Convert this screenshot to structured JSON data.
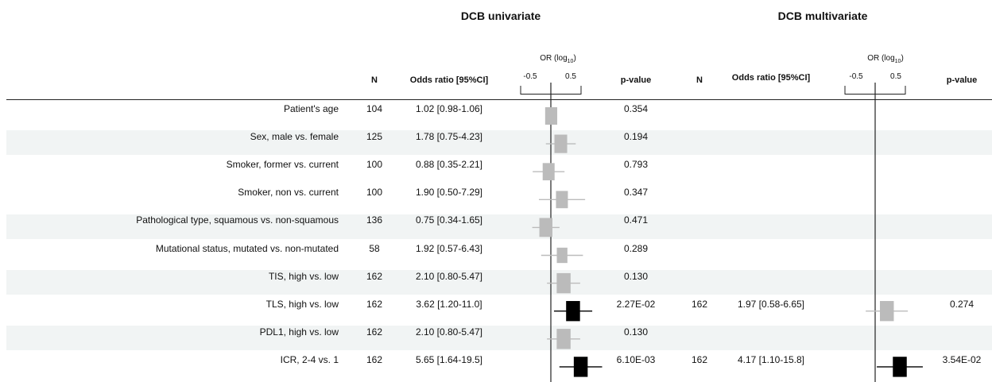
{
  "headings": {
    "univariate": "DCB univariate",
    "multivariate": "DCB multivariate"
  },
  "columns": {
    "n": "N",
    "or_ci": "Odds ratio [95%CI]",
    "or_axis_label": "OR (log",
    "or_axis_sub": "10",
    "or_axis_close": ")",
    "p": "p-value"
  },
  "axis_ticks": [
    "-0.5",
    "0.5"
  ],
  "colors": {
    "significant": "#000000",
    "nonsignificant": "#bbbbbb",
    "band": "#f1f4f4"
  },
  "rows": [
    {
      "label": "Patient's age",
      "uni": {
        "n": "104",
        "or": "1.02 [0.98-1.06]",
        "p": "0.354"
      }
    },
    {
      "label": "Sex, male vs. female",
      "uni": {
        "n": "125",
        "or": "1.78 [0.75-4.23]",
        "p": "0.194"
      }
    },
    {
      "label": "Smoker, former vs. current",
      "uni": {
        "n": "100",
        "or": "0.88 [0.35-2.21]",
        "p": "0.793"
      }
    },
    {
      "label": "Smoker, non vs. current",
      "uni": {
        "n": "100",
        "or": "1.90 [0.50-7.29]",
        "p": "0.347"
      }
    },
    {
      "label": "Pathological type, squamous vs. non-squamous",
      "uni": {
        "n": "136",
        "or": "0.75 [0.34-1.65]",
        "p": "0.471"
      }
    },
    {
      "label": "Mutational status, mutated vs. non-mutated",
      "uni": {
        "n": "58",
        "or": "1.92 [0.57-6.43]",
        "p": "0.289"
      }
    },
    {
      "label": "TIS, high vs. low",
      "uni": {
        "n": "162",
        "or": "2.10 [0.80-5.47]",
        "p": "0.130"
      }
    },
    {
      "label": "TLS, high vs. low",
      "uni": {
        "n": "162",
        "or": "3.62 [1.20-11.0]",
        "p": "2.27E-02"
      },
      "multi": {
        "n": "162",
        "or": "1.97 [0.58-6.65]",
        "p": "0.274"
      }
    },
    {
      "label": "PDL1, high vs. low",
      "uni": {
        "n": "162",
        "or": "2.10 [0.80-5.47]",
        "p": "0.130"
      }
    },
    {
      "label": "ICR, 2-4 vs. 1",
      "uni": {
        "n": "162",
        "or": "5.65 [1.64-19.5]",
        "p": "6.10E-03"
      },
      "multi": {
        "n": "162",
        "or": "4.17 [1.10-15.8]",
        "p": "3.54E-02"
      }
    }
  ],
  "chart_data": [
    {
      "type": "scatter",
      "title": "DCB univariate",
      "xlabel": "OR (log10)",
      "x_scale": "log10",
      "x_ticks": [
        -0.5,
        0.5
      ],
      "xlim": [
        -0.5,
        0.5
      ],
      "categories": [
        "Patient's age",
        "Sex, male vs. female",
        "Smoker, former vs. current",
        "Smoker, non vs. current",
        "Pathological type, squamous vs. non-squamous",
        "Mutational status, mutated vs. non-mutated",
        "TIS, high vs. low",
        "TLS, high vs. low",
        "PDL1, high vs. low",
        "ICR, 2-4 vs. 1"
      ],
      "or": [
        1.02,
        1.78,
        0.88,
        1.9,
        0.75,
        1.92,
        2.1,
        3.62,
        2.1,
        5.65
      ],
      "lower": [
        0.98,
        0.75,
        0.35,
        0.5,
        0.34,
        0.57,
        0.8,
        1.2,
        0.8,
        1.64
      ],
      "upper": [
        1.06,
        4.23,
        2.21,
        7.29,
        1.65,
        6.43,
        5.47,
        11.0,
        5.47,
        19.5
      ],
      "n": [
        104,
        125,
        100,
        100,
        136,
        58,
        162,
        162,
        162,
        162
      ],
      "significant": [
        false,
        false,
        false,
        false,
        false,
        false,
        false,
        true,
        false,
        true
      ]
    },
    {
      "type": "scatter",
      "title": "DCB multivariate",
      "xlabel": "OR (log10)",
      "x_scale": "log10",
      "x_ticks": [
        -0.5,
        0.5
      ],
      "xlim": [
        -0.5,
        0.5
      ],
      "categories": [
        "TLS, high vs. low",
        "ICR, 2-4 vs. 1"
      ],
      "or": [
        1.97,
        4.17
      ],
      "lower": [
        0.58,
        1.1
      ],
      "upper": [
        6.65,
        15.8
      ],
      "n": [
        162,
        162
      ],
      "significant": [
        false,
        true
      ]
    }
  ]
}
